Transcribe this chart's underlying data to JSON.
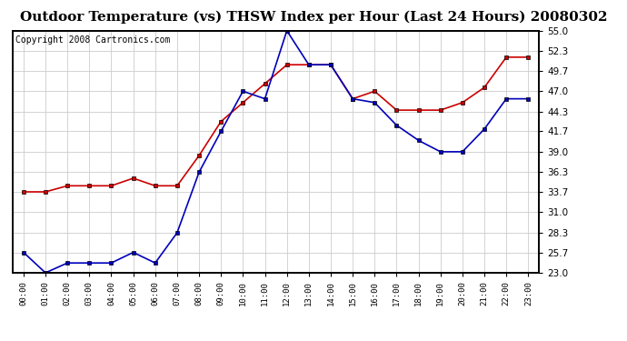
{
  "title": "Outdoor Temperature (vs) THSW Index per Hour (Last 24 Hours) 20080302",
  "copyright": "Copyright 2008 Cartronics.com",
  "hours": [
    "00:00",
    "01:00",
    "02:00",
    "03:00",
    "04:00",
    "05:00",
    "06:00",
    "07:00",
    "08:00",
    "09:00",
    "10:00",
    "11:00",
    "12:00",
    "13:00",
    "14:00",
    "15:00",
    "16:00",
    "17:00",
    "18:00",
    "19:00",
    "20:00",
    "21:00",
    "22:00",
    "23:00"
  ],
  "temp_blue": [
    25.7,
    23.0,
    24.3,
    24.3,
    24.3,
    25.7,
    24.3,
    28.3,
    36.3,
    41.7,
    47.0,
    46.0,
    55.0,
    50.5,
    50.5,
    46.0,
    45.5,
    42.5,
    40.5,
    39.0,
    39.0,
    42.0,
    46.0,
    46.0
  ],
  "thsw_red": [
    33.7,
    33.7,
    34.5,
    34.5,
    34.5,
    35.5,
    34.5,
    34.5,
    38.5,
    43.0,
    45.5,
    48.0,
    50.5,
    50.5,
    50.5,
    46.0,
    47.0,
    44.5,
    44.5,
    44.5,
    45.5,
    47.5,
    51.5,
    51.5
  ],
  "ylim": [
    23.0,
    55.0
  ],
  "yticks": [
    23.0,
    25.7,
    28.3,
    31.0,
    33.7,
    36.3,
    39.0,
    41.7,
    44.3,
    47.0,
    49.7,
    52.3,
    55.0
  ],
  "bg_color": "#ffffff",
  "grid_color": "#cccccc",
  "blue_color": "#0000bb",
  "red_color": "#cc0000",
  "title_fontsize": 11,
  "copyright_fontsize": 7
}
